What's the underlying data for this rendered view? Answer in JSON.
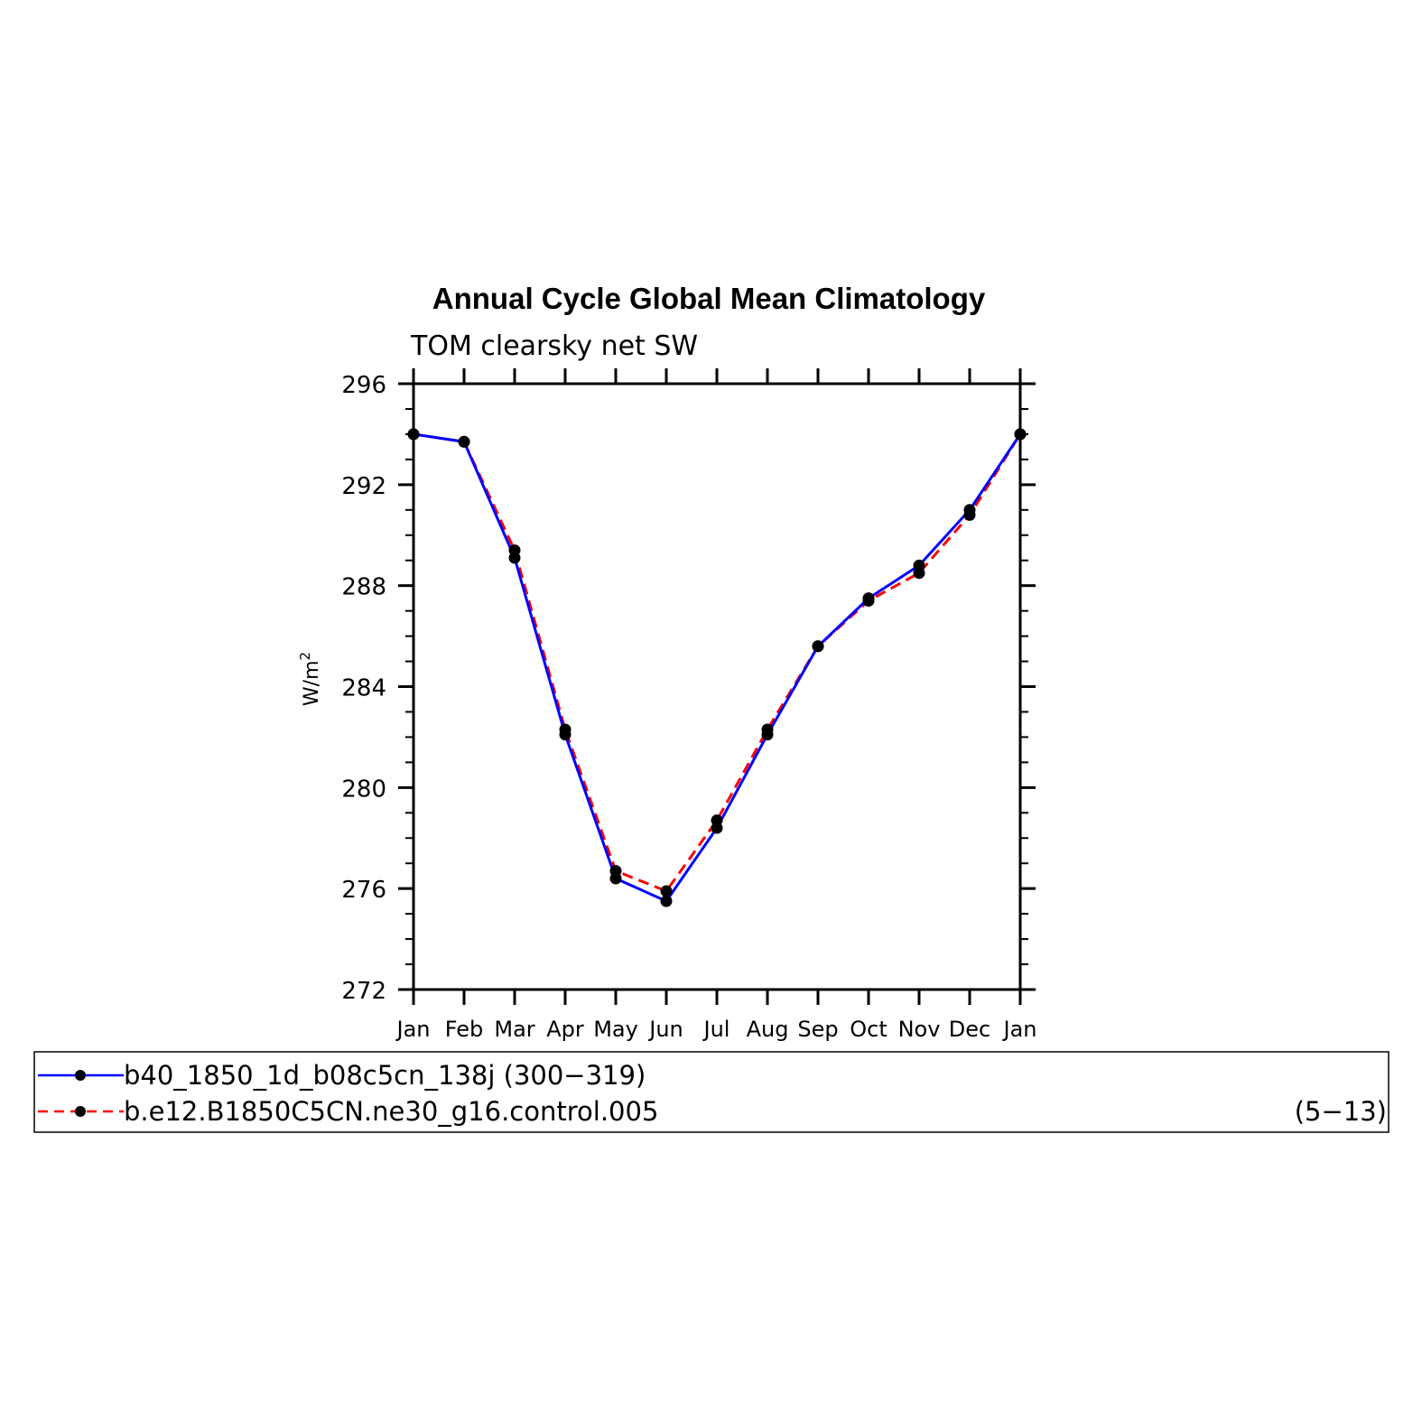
{
  "chart_data": {
    "type": "line",
    "title": "Annual Cycle Global Mean Climatology",
    "subtitle": "TOM clearsky net SW",
    "ylabel": "W/m",
    "ylabel_sup": "2",
    "xlabel": "",
    "categories": [
      "Jan",
      "Feb",
      "Mar",
      "Apr",
      "May",
      "Jun",
      "Jul",
      "Aug",
      "Sep",
      "Oct",
      "Nov",
      "Dec",
      "Jan"
    ],
    "ylim": [
      272,
      296
    ],
    "yticks": [
      272,
      276,
      280,
      284,
      288,
      292,
      296
    ],
    "ytick_labels": [
      "272",
      "276",
      "280",
      "284",
      "288",
      "292",
      "296"
    ],
    "grid": false,
    "legend_position": "bottom",
    "series": [
      {
        "name": "b40_1850_1d_b08c5cn_138j (300−319)",
        "years": "",
        "color": "#0000ff",
        "dash": "solid",
        "values": [
          294.0,
          293.7,
          289.1,
          282.1,
          276.4,
          275.5,
          278.4,
          282.1,
          285.6,
          287.5,
          288.8,
          291.0,
          294.0
        ]
      },
      {
        "name": "b.e12.B1850C5CN.ne30_g16.control.005",
        "years": "(5−13)",
        "color": "#ff0000",
        "dash": "dashed",
        "values": [
          294.0,
          293.7,
          289.4,
          282.3,
          276.7,
          275.9,
          278.7,
          282.3,
          285.6,
          287.4,
          288.5,
          290.8,
          294.0
        ]
      }
    ]
  }
}
